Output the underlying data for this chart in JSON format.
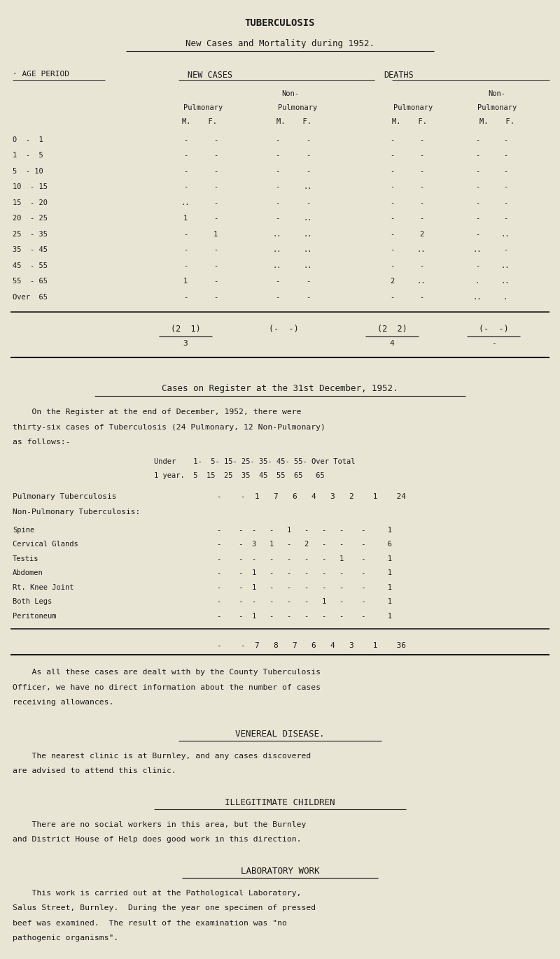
{
  "bg_color": "#e8e5d5",
  "text_color": "#1a1a1a",
  "page_width": 8.0,
  "page_height": 13.71,
  "dpi": 100,
  "title_stamp": "TUBERCULOSIS",
  "title_main": "New Cases and Mortality during 1952.",
  "age_periods": [
    "0  -  1",
    "1  -  5",
    "5  - 10",
    "10  - 15",
    "15  - 20",
    "20  - 25",
    "25  - 35",
    "35  - 45",
    "45  - 55",
    "55  - 65",
    "Over  65"
  ],
  "table_data": [
    [
      "-",
      "-",
      "-",
      "-",
      "-",
      "-",
      "-",
      "-"
    ],
    [
      "-",
      "-",
      "-",
      "-",
      "-",
      "-",
      "-",
      "-"
    ],
    [
      "-",
      "-",
      "-",
      "-",
      "-",
      "-",
      "-",
      "-"
    ],
    [
      "-",
      "-",
      "-",
      "..",
      "-",
      "-",
      "-",
      "-"
    ],
    [
      "..",
      "-",
      "-",
      "-",
      "-",
      "-",
      "-",
      "-"
    ],
    [
      "1",
      "-",
      "-",
      "..",
      "-",
      "-",
      "-",
      "-"
    ],
    [
      "-",
      "1",
      "..",
      "..",
      "-",
      "2",
      "-",
      ".."
    ],
    [
      "-",
      "-",
      "..",
      "..",
      "-",
      "..",
      "..",
      "-"
    ],
    [
      "-",
      "-",
      "..",
      "..",
      "-",
      "-",
      "-",
      ".."
    ],
    [
      "1",
      "-",
      "-",
      "-",
      "2",
      "..",
      ".",
      ".."
    ],
    [
      "-",
      "-",
      "-",
      "-",
      "-",
      "-",
      "..",
      "."
    ]
  ],
  "totals_num": [
    "2  1",
    "-  -",
    "2  2",
    "-  -"
  ],
  "totals_den": [
    "3",
    "",
    "4",
    "-"
  ],
  "section2_title": "Cases on Register at the 31st December, 1952.",
  "section2_para1": "    On the Register at the end of December, 1952, there were",
  "section2_para2": "thirty-six cases of Tuberculosis (24 Pulmonary, 12 Non-Pulmonary)",
  "section2_para3": "as follows:-",
  "reg_hdr1": "Under    1-  5- 15- 25- 35- 45- 55- Over Total",
  "reg_hdr2": "1 year.  5  15  25  35  45  55  65   65",
  "pulm_name": "Pulmonary Tuberculosis",
  "pulm_vals": "-    -  1   7   6   4   3   2    1    24",
  "non_pulm_label": "Non-Pulmonary Tuberculosis:",
  "non_pulm_rows": [
    [
      "Spine",
      "-    -  -   -   1   -   -   -    -     1"
    ],
    [
      "Cervical Glands",
      "-    -  3   1   -   2   -   -    -     6"
    ],
    [
      "Testis",
      "-    -  -   -   -   -   -   1    -     1"
    ],
    [
      "Abdomen",
      "-    -  1   -   -   -   -   -    -     1"
    ],
    [
      "Rt. Knee Joint",
      "-    -  1   -   -   -   -   -    -     1"
    ],
    [
      "Both Legs",
      "-    -  -   -   -   -   1   -    -     1"
    ],
    [
      "Peritoneum",
      "-    -  1   -   -   -   -   -    -     1"
    ]
  ],
  "grand_total_row": "-    -  7   8   7   6   4   3    1    36",
  "para_after": [
    "    As all these cases are dealt with by the County Tuberculosis",
    "Officer, we have no direct information about the number of cases",
    "receiving allowances."
  ],
  "section3_title": "VENEREAL DISEASE.",
  "section3_para": [
    "    The nearest clinic is at Burnley, and any cases discovered",
    "are advised to attend this clinic."
  ],
  "section4_title": "ILLEGITIMATE CHILDREN",
  "section4_para": [
    "    There are no social workers in this area, but the Burnley",
    "and District House of Help does good work in this direction."
  ],
  "section5_title": "LABORATORY WORK",
  "section5_para": [
    "    This work is carried out at the Pathological Laboratory,",
    "Salus Street, Burnley.  During the year one specimen of pressed",
    "beef was examined.  The result of the examination was \"no",
    "pathogenic organisms\"."
  ]
}
